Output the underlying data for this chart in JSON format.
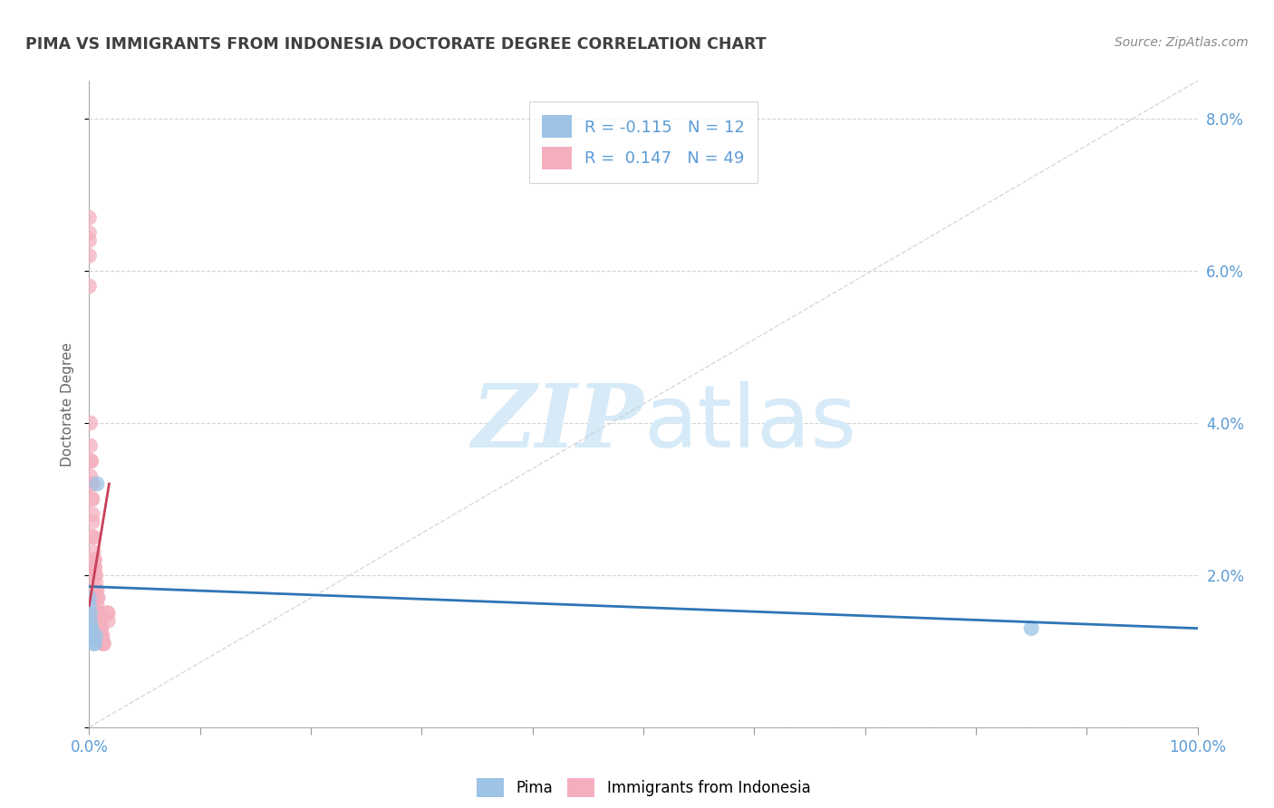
{
  "title": "PIMA VS IMMIGRANTS FROM INDONESIA DOCTORATE DEGREE CORRELATION CHART",
  "source_text": "Source: ZipAtlas.com",
  "ylabel": "Doctorate Degree",
  "x_min": 0.0,
  "x_max": 1.0,
  "y_min": 0.0,
  "y_max": 0.085,
  "x_ticks": [
    0.0,
    0.1,
    0.2,
    0.3,
    0.4,
    0.5,
    0.6,
    0.7,
    0.8,
    0.9,
    1.0
  ],
  "x_tick_labels_show": {
    "0.0": "0.0%",
    "1.0": "100.0%"
  },
  "y_ticks": [
    0.0,
    0.02,
    0.04,
    0.06,
    0.08
  ],
  "y_tick_labels_right": [
    "",
    "2.0%",
    "4.0%",
    "6.0%",
    "8.0%"
  ],
  "pima_color": "#9DC3E6",
  "indonesia_color": "#F4AFBE",
  "pima_R": -0.115,
  "pima_N": 12,
  "indonesia_R": 0.147,
  "indonesia_N": 49,
  "pima_trend_color": "#2E75B6",
  "indonesia_trend_color": "#C9405A",
  "watermark_color": "#D6EAF8",
  "legend_label_pima": "Pima",
  "legend_label_indonesia": "Immigrants from Indonesia",
  "pima_scatter_x": [
    0.0,
    0.0,
    0.001,
    0.001,
    0.001,
    0.002,
    0.003,
    0.004,
    0.005,
    0.006,
    0.007,
    0.85
  ],
  "pima_scatter_y": [
    0.017,
    0.016,
    0.015,
    0.014,
    0.013,
    0.013,
    0.012,
    0.011,
    0.011,
    0.012,
    0.032,
    0.013
  ],
  "indonesia_scatter_x": [
    0.0,
    0.0,
    0.0,
    0.0,
    0.0,
    0.001,
    0.001,
    0.001,
    0.001,
    0.002,
    0.002,
    0.002,
    0.003,
    0.003,
    0.003,
    0.003,
    0.003,
    0.004,
    0.004,
    0.004,
    0.005,
    0.005,
    0.005,
    0.005,
    0.006,
    0.006,
    0.006,
    0.006,
    0.007,
    0.007,
    0.007,
    0.008,
    0.008,
    0.009,
    0.009,
    0.009,
    0.009,
    0.01,
    0.01,
    0.01,
    0.011,
    0.011,
    0.012,
    0.012,
    0.013,
    0.013,
    0.016,
    0.017,
    0.017
  ],
  "indonesia_scatter_y": [
    0.067,
    0.065,
    0.064,
    0.062,
    0.058,
    0.04,
    0.037,
    0.035,
    0.033,
    0.035,
    0.032,
    0.03,
    0.032,
    0.03,
    0.028,
    0.027,
    0.025,
    0.025,
    0.023,
    0.022,
    0.022,
    0.021,
    0.021,
    0.02,
    0.02,
    0.019,
    0.018,
    0.017,
    0.018,
    0.017,
    0.016,
    0.017,
    0.015,
    0.015,
    0.015,
    0.014,
    0.013,
    0.014,
    0.013,
    0.012,
    0.013,
    0.012,
    0.012,
    0.011,
    0.011,
    0.011,
    0.015,
    0.015,
    0.014
  ],
  "background_color": "#FFFFFF",
  "grid_color": "#CCCCCC",
  "title_color": "#404040",
  "tick_label_color": "#5B9BD5",
  "source_color": "#888888",
  "pima_trend_x": [
    0.0,
    1.0
  ],
  "pima_trend_y": [
    0.0185,
    0.013
  ],
  "indonesia_trend_x": [
    0.0,
    0.018
  ],
  "indonesia_trend_y": [
    0.016,
    0.032
  ]
}
